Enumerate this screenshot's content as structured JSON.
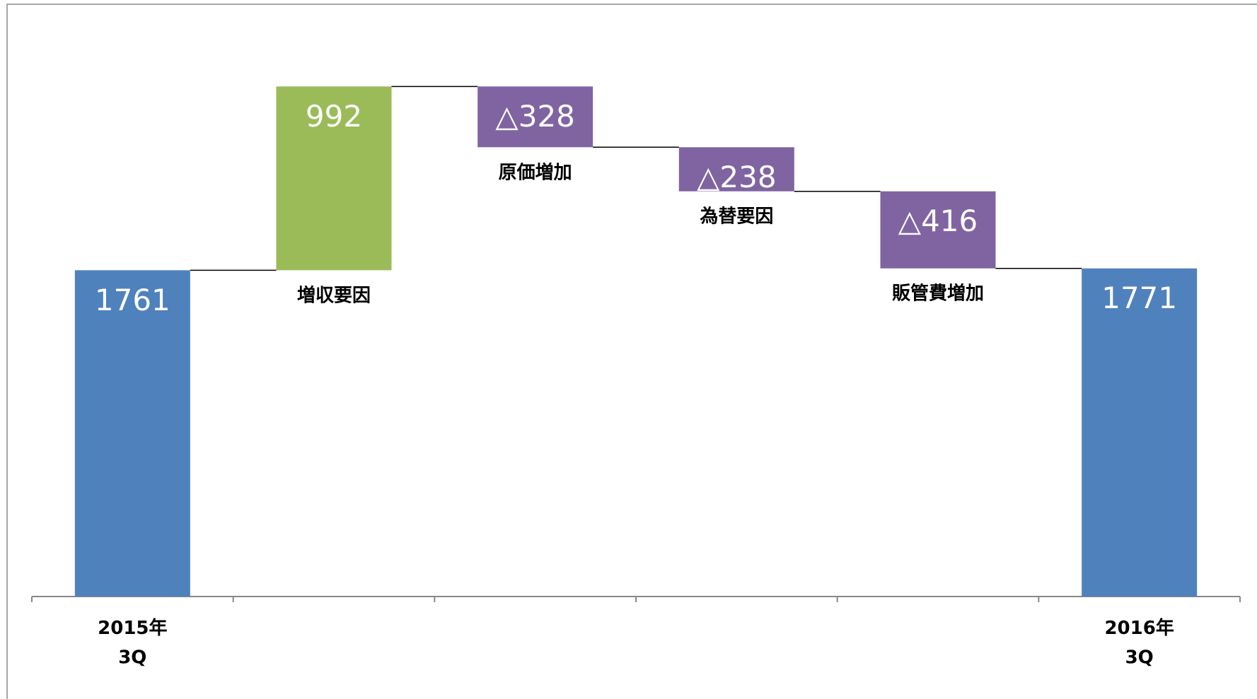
{
  "chart_data": {
    "type": "waterfall",
    "categories": [
      "2015年\n3Q",
      "増収要因",
      "原価増加",
      "為替要因",
      "販管費増加",
      "2016年\n3Q"
    ],
    "values": [
      1761,
      992,
      -328,
      -238,
      -416,
      1771
    ],
    "value_labels": [
      "1761",
      "992",
      "△328",
      "△238",
      "△416",
      "1771"
    ],
    "measure": [
      "total",
      "relative",
      "relative",
      "relative",
      "relative",
      "total"
    ],
    "color_total": "#4f81bd",
    "color_increase": "#9bbb59",
    "color_decrease": "#8064a2",
    "ylim": [
      0,
      2800
    ]
  }
}
